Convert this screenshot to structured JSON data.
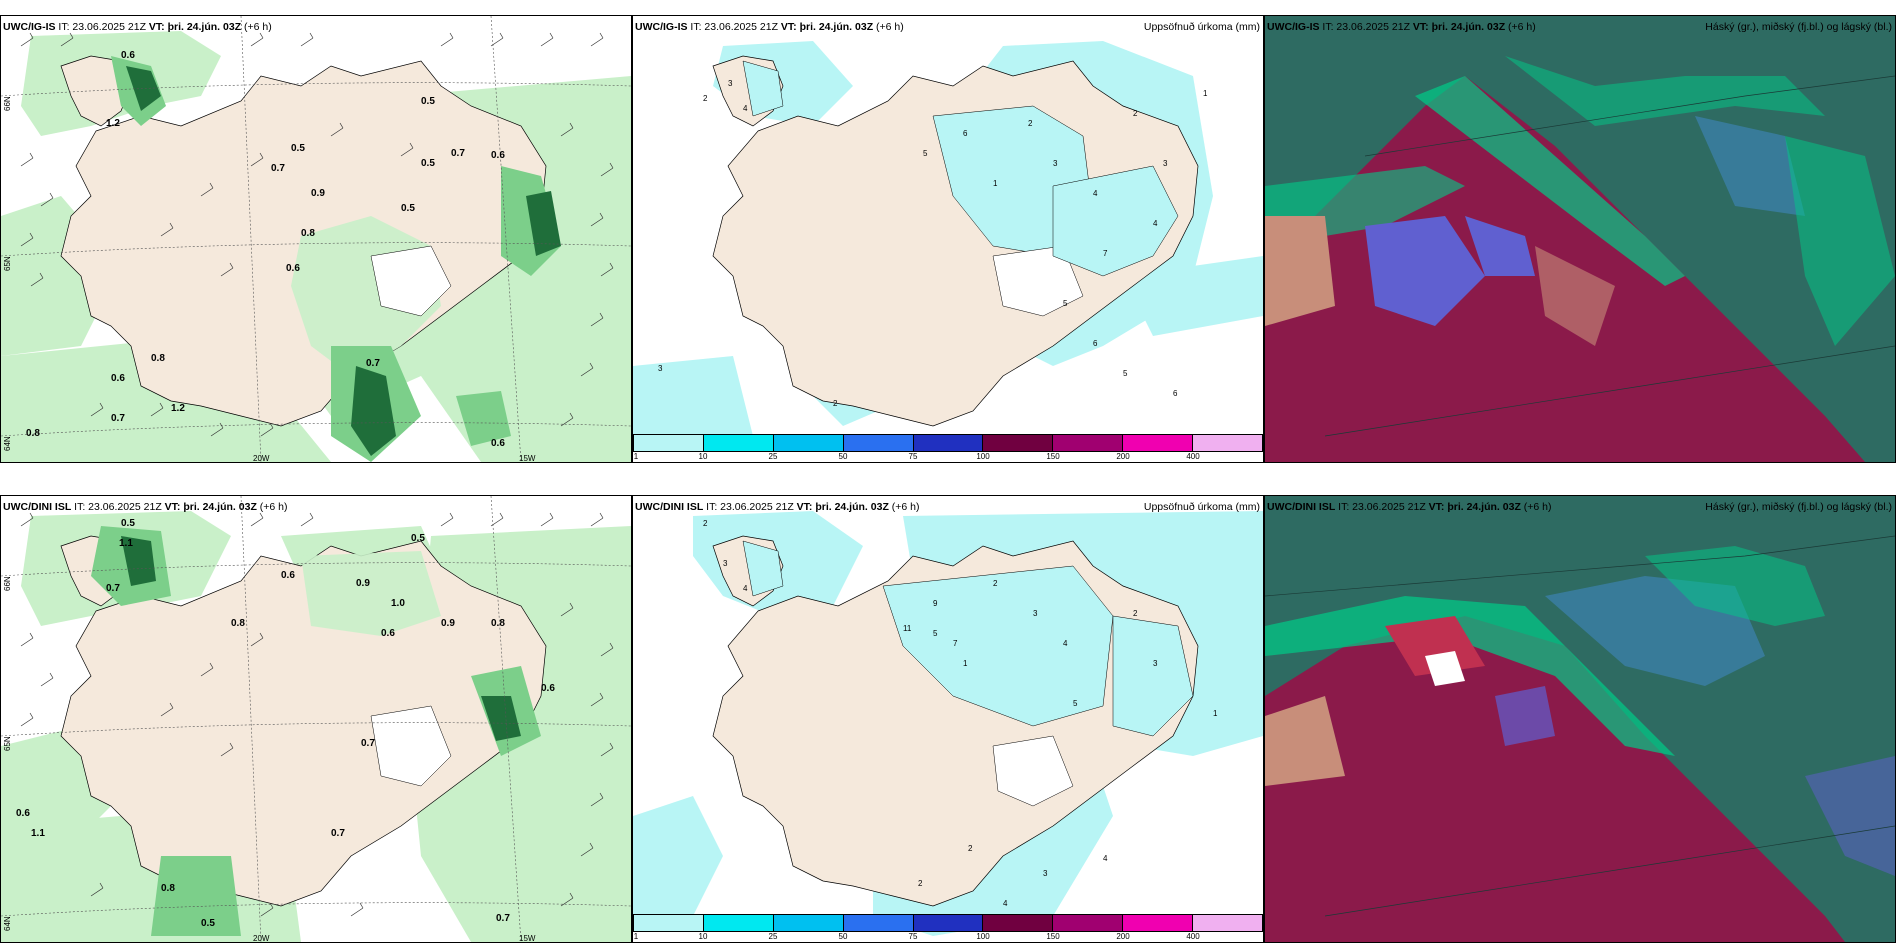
{
  "panels": {
    "p1": {
      "model": "UWC/IG-IS",
      "it": "IT: 23.06.2025 21Z",
      "vt": "VT: þri. 24.jún. 03Z",
      "lead": "(+6 h)",
      "right_title": ""
    },
    "p2": {
      "model": "UWC/IG-IS",
      "it": "IT: 23.06.2025 21Z",
      "vt": "VT: þri. 24.jún. 03Z",
      "lead": "(+6 h)",
      "right_title": "Uppsöfnuð úrkoma (mm)"
    },
    "p3": {
      "model": "UWC/IG-IS",
      "it": "IT: 23.06.2025 21Z",
      "vt": "VT: þri. 24.jún. 03Z",
      "lead": "(+6 h)",
      "right_title": "Háský (gr.), miðský (fj.bl.) og lágský (bl.)"
    },
    "p4": {
      "model": "UWC/DINI ISL",
      "it": "IT: 23.06.2025 21Z",
      "vt": "VT: þri. 24.jún. 03Z",
      "lead": "(+6 h)",
      "right_title": ""
    },
    "p5": {
      "model": "UWC/DINI ISL",
      "it": "IT: 23.06.2025 21Z",
      "vt": "VT: þri. 24.jún. 03Z",
      "lead": "(+6 h)",
      "right_title": "Uppsöfnuð úrkoma (mm)"
    },
    "p6": {
      "model": "UWC/DINI ISL",
      "it": "IT: 23.06.2025 21Z",
      "vt": "VT: þri. 24.jún. 03Z",
      "lead": "(+6 h)",
      "right_title": "Háský (gr.), miðský (fj.bl.) og lágský (bl.)"
    }
  },
  "colorbar": {
    "labels": [
      "1",
      "10",
      "25",
      "50",
      "75",
      "100",
      "150",
      "200",
      "400"
    ],
    "colors": [
      "#b8f5f5",
      "#00e8f0",
      "#00c0f0",
      "#2a70f0",
      "#2030c0",
      "#700040",
      "#a00070",
      "#f000b0",
      "#f0b0f0"
    ]
  },
  "axes": {
    "lat_labels": [
      "66N",
      "65N",
      "64N"
    ],
    "lon_labels": [
      "20W",
      "15W"
    ]
  },
  "colors": {
    "land": "#f5e9dc",
    "light_green": "#c9f0c9",
    "mid_green": "#7ccf8a",
    "dark_green": "#1f6e3a",
    "precip_light": "#b8f5f5",
    "cloud_high": "#2e6b62",
    "cloud_mid": "#00cc88",
    "cloud_low": "#8b1a4a",
    "cloud_blue": "#6060d0"
  },
  "annotations": {
    "p1_values": [
      "0.6",
      "0.5",
      "1.2",
      "0.8",
      "0.6",
      "0.5",
      "0.7",
      "0.9",
      "0.5",
      "0.7",
      "0.6",
      "0.8",
      "0.7",
      "0.6",
      "1.2",
      "0.8",
      "0.5",
      "0.7",
      "0.6"
    ],
    "p2_values": [
      "2",
      "3",
      "4",
      "5",
      "6",
      "1",
      "2",
      "3",
      "4",
      "7",
      "5",
      "2",
      "3",
      "4",
      "1",
      "6",
      "2",
      "3",
      "5",
      "6"
    ],
    "p4_values": [
      "0.5",
      "1.1",
      "0.7",
      "0.8",
      "0.6",
      "0.9",
      "1.0",
      "0.5",
      "0.6",
      "0.8",
      "0.7",
      "0.9",
      "0.6",
      "1.1",
      "0.5",
      "0.7",
      "0.8",
      "0.6",
      "0.7"
    ],
    "p5_values": [
      "2",
      "3",
      "4",
      "5",
      "1",
      "2",
      "3",
      "4",
      "11",
      "9",
      "7",
      "2",
      "3",
      "1",
      "4",
      "2",
      "3",
      "5",
      "4",
      "2"
    ]
  }
}
